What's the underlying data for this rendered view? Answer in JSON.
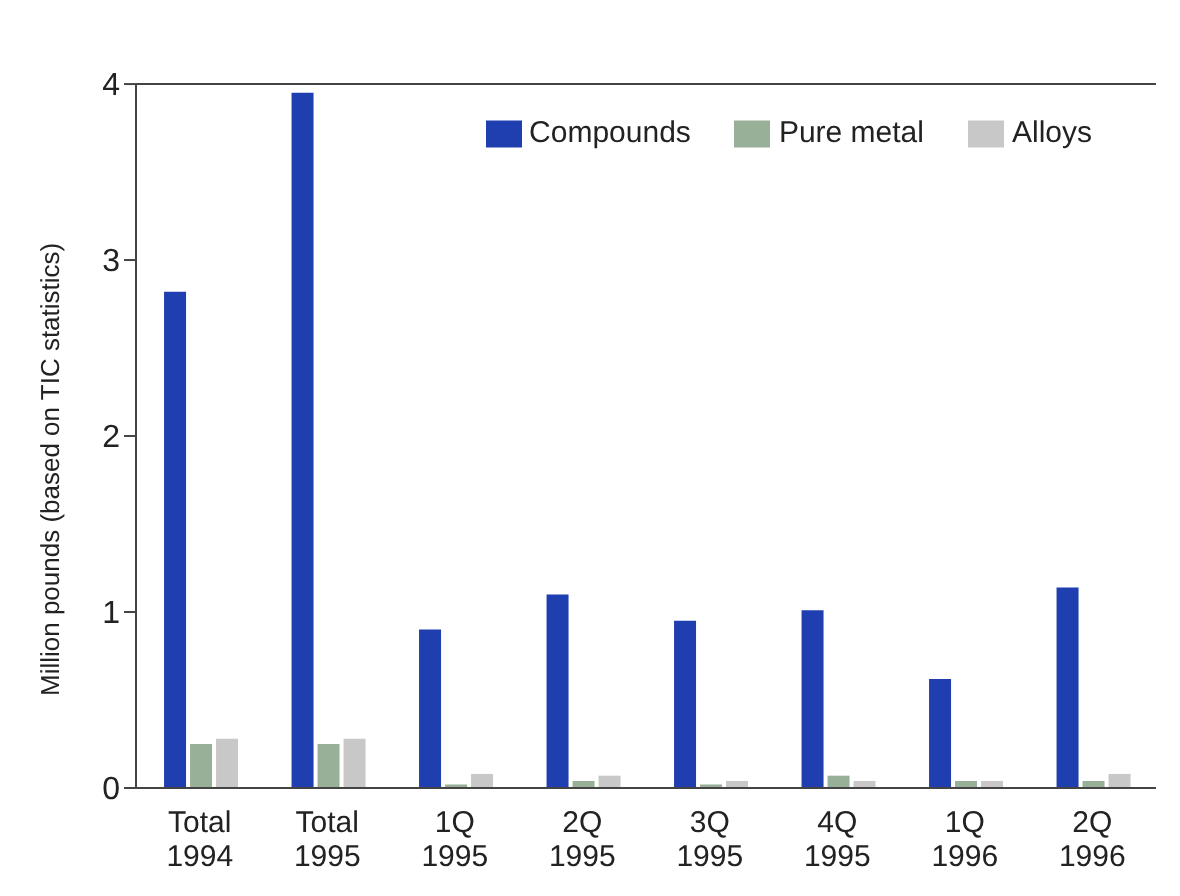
{
  "chart_data": {
    "type": "bar",
    "ylabel": "Million pounds (based on TIC statistics)",
    "categories": [
      "Total 1994",
      "Total 1995",
      "1Q 1995",
      "2Q 1995",
      "3Q 1995",
      "4Q 1995",
      "1Q 1996",
      "2Q 1996"
    ],
    "series": [
      {
        "name": "Compounds",
        "color": "#1f3fb0",
        "values": [
          2.82,
          3.95,
          0.9,
          1.1,
          0.95,
          1.01,
          0.62,
          1.14
        ]
      },
      {
        "name": "Pure metal",
        "color": "#98b098",
        "values": [
          0.25,
          0.25,
          0.02,
          0.04,
          0.02,
          0.07,
          0.04,
          0.04
        ]
      },
      {
        "name": "Alloys",
        "color": "#c8c8c8",
        "values": [
          0.28,
          0.28,
          0.08,
          0.07,
          0.04,
          0.04,
          0.04,
          0.08
        ]
      }
    ],
    "ylim": [
      0,
      4
    ],
    "yticks": [
      0,
      1,
      2,
      3,
      4
    ],
    "grid": false,
    "legend": "top right"
  }
}
